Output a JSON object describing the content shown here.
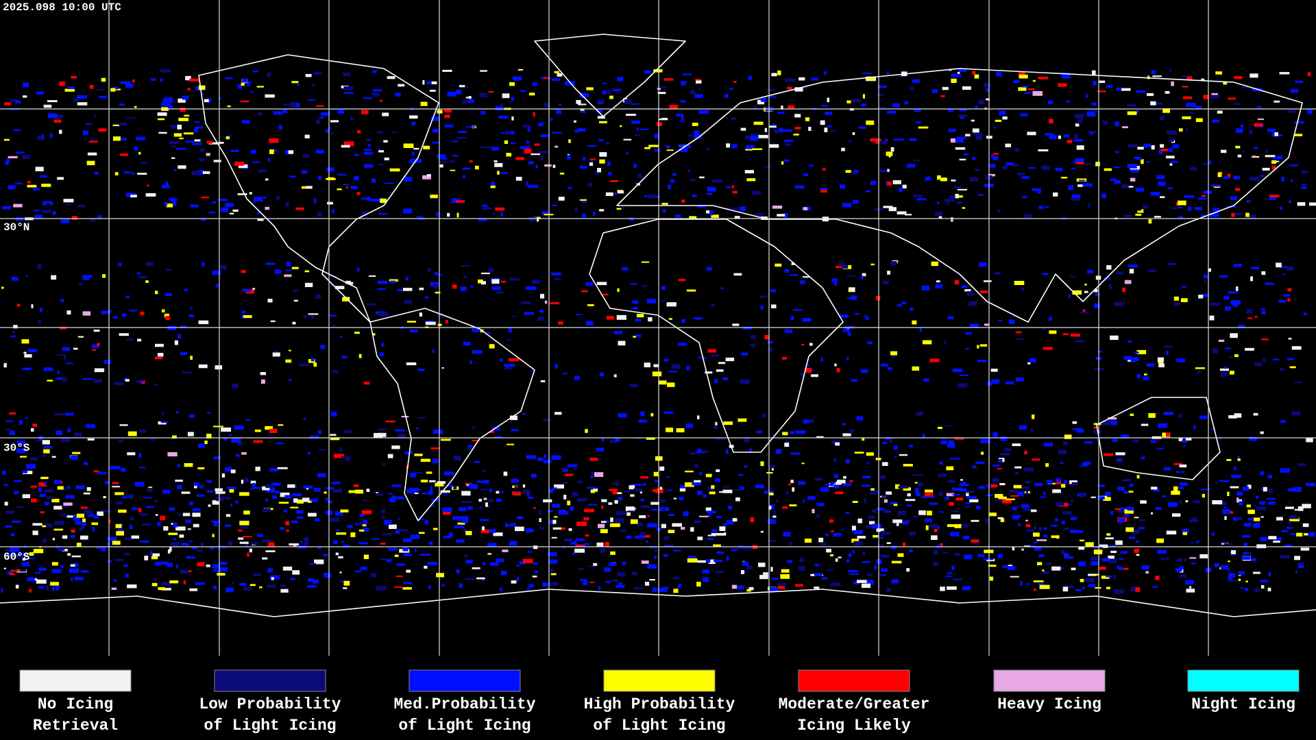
{
  "timestamp": "2025.098 10:00 UTC",
  "latitude_labels": [
    "30°N",
    "30°S",
    "60°S"
  ],
  "legend": [
    {
      "color": "#f2f2f2",
      "label": [
        "No Icing",
        "Retrieval"
      ]
    },
    {
      "color": "#0a0a7a",
      "label": [
        "Low Probability",
        "of Light Icing"
      ]
    },
    {
      "color": "#0010ff",
      "label": [
        "Med.Probability",
        "of Light Icing"
      ]
    },
    {
      "color": "#ffff00",
      "label": [
        "High Probability",
        "of Light Icing"
      ]
    },
    {
      "color": "#ff0000",
      "label": [
        "Moderate/Greater",
        "Icing Likely"
      ]
    },
    {
      "color": "#e8a8e4",
      "label": [
        "Heavy Icing"
      ]
    },
    {
      "color": "#00ffff",
      "label": [
        "Night Icing"
      ]
    }
  ]
}
